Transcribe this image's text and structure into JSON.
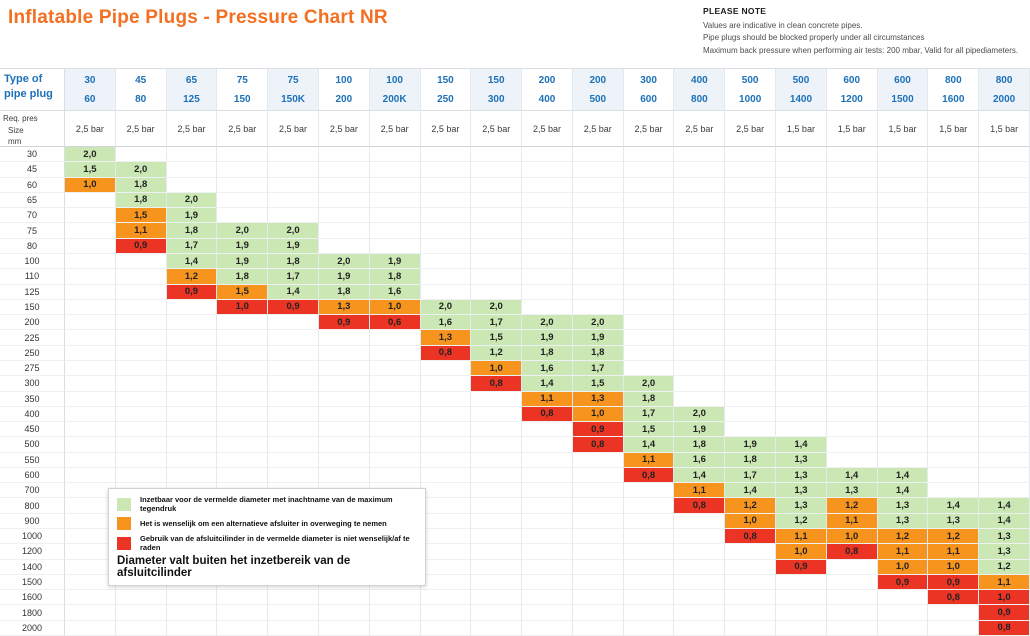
{
  "title": "Inflatable Pipe Plugs - Pressure Chart NR",
  "note": {
    "heading": "PLEASE NOTE",
    "lines": [
      "Values are indicative in clean concrete pipes.",
      "Pipe plugs should be blocked properly under all circumstances",
      "Maximum back pressure when performing air tests: 200 mbar, Valid for all pipediameters."
    ]
  },
  "colors": {
    "title_orange": "#F36F21",
    "header_blue": "#1D71B8",
    "green": "#CBE7B4",
    "orange": "#F7941E",
    "red": "#EC3424"
  },
  "legend": {
    "items": [
      {
        "swatch": "g",
        "label": "Inzetbaar voor de vermelde diameter met inachtname van de maximum tegendruk"
      },
      {
        "swatch": "o",
        "label": "Het is wenselijk om een alternatieve afsluiter in overweging te nemen"
      },
      {
        "swatch": "r",
        "label": "Gebruik van de afsluitcilinder in de vermelde diameter is niet wenselijk/af te raden"
      },
      {
        "swatch": "none",
        "label": "Diameter valt buiten het inzetbereik van de afsluitcilinder"
      }
    ]
  },
  "chart_data": {
    "type": "heatmap",
    "title": "Inflatable Pipe Plugs - Pressure Chart NR",
    "corner_label": "Type of pipe plug",
    "req_pres_label": "Req. pres",
    "size_label_lines": [
      "Size",
      "mm"
    ],
    "status_key": {
      "g": "usable",
      "o": "consider alternative",
      "r": "not advised"
    },
    "columns": [
      {
        "top": "30",
        "bottom": "60",
        "pressure": "2,5 bar"
      },
      {
        "top": "45",
        "bottom": "80",
        "pressure": "2,5 bar"
      },
      {
        "top": "65",
        "bottom": "125",
        "pressure": "2,5 bar"
      },
      {
        "top": "75",
        "bottom": "150",
        "pressure": "2,5 bar"
      },
      {
        "top": "75",
        "bottom": "150K",
        "pressure": "2,5 bar"
      },
      {
        "top": "100",
        "bottom": "200",
        "pressure": "2,5 bar"
      },
      {
        "top": "100",
        "bottom": "200K",
        "pressure": "2,5 bar"
      },
      {
        "top": "150",
        "bottom": "250",
        "pressure": "2,5 bar"
      },
      {
        "top": "150",
        "bottom": "300",
        "pressure": "2,5 bar"
      },
      {
        "top": "200",
        "bottom": "400",
        "pressure": "2,5 bar"
      },
      {
        "top": "200",
        "bottom": "500",
        "pressure": "2,5 bar"
      },
      {
        "top": "300",
        "bottom": "600",
        "pressure": "2,5 bar"
      },
      {
        "top": "400",
        "bottom": "800",
        "pressure": "2,5 bar"
      },
      {
        "top": "500",
        "bottom": "1000",
        "pressure": "2,5 bar"
      },
      {
        "top": "500",
        "bottom": "1400",
        "pressure": "1,5 bar"
      },
      {
        "top": "600",
        "bottom": "1200",
        "pressure": "1,5 bar"
      },
      {
        "top": "600",
        "bottom": "1500",
        "pressure": "1,5 bar"
      },
      {
        "top": "800",
        "bottom": "1600",
        "pressure": "1,5 bar"
      },
      {
        "top": "800",
        "bottom": "2000",
        "pressure": "1,5 bar"
      }
    ],
    "rows": [
      {
        "size": "30",
        "cells": [
          [
            0,
            "2,0",
            "g"
          ]
        ]
      },
      {
        "size": "45",
        "cells": [
          [
            0,
            "1,5",
            "g"
          ],
          [
            1,
            "2,0",
            "g"
          ]
        ]
      },
      {
        "size": "60",
        "cells": [
          [
            0,
            "1,0",
            "o"
          ],
          [
            1,
            "1,8",
            "g"
          ]
        ]
      },
      {
        "size": "65",
        "cells": [
          [
            1,
            "1,8",
            "g"
          ],
          [
            2,
            "2,0",
            "g"
          ]
        ]
      },
      {
        "size": "70",
        "cells": [
          [
            1,
            "1,5",
            "o"
          ],
          [
            2,
            "1,9",
            "g"
          ]
        ]
      },
      {
        "size": "75",
        "cells": [
          [
            1,
            "1,1",
            "o"
          ],
          [
            2,
            "1,8",
            "g"
          ],
          [
            3,
            "2,0",
            "g"
          ],
          [
            4,
            "2,0",
            "g"
          ]
        ]
      },
      {
        "size": "80",
        "cells": [
          [
            1,
            "0,9",
            "r"
          ],
          [
            2,
            "1,7",
            "g"
          ],
          [
            3,
            "1,9",
            "g"
          ],
          [
            4,
            "1,9",
            "g"
          ]
        ]
      },
      {
        "size": "100",
        "cells": [
          [
            2,
            "1,4",
            "g"
          ],
          [
            3,
            "1,9",
            "g"
          ],
          [
            4,
            "1,8",
            "g"
          ],
          [
            5,
            "2,0",
            "g"
          ],
          [
            6,
            "1,9",
            "g"
          ]
        ]
      },
      {
        "size": "110",
        "cells": [
          [
            2,
            "1,2",
            "o"
          ],
          [
            3,
            "1,8",
            "g"
          ],
          [
            4,
            "1,7",
            "g"
          ],
          [
            5,
            "1,9",
            "g"
          ],
          [
            6,
            "1,8",
            "g"
          ]
        ]
      },
      {
        "size": "125",
        "cells": [
          [
            2,
            "0,9",
            "r"
          ],
          [
            3,
            "1,5",
            "o"
          ],
          [
            4,
            "1,4",
            "g"
          ],
          [
            5,
            "1,8",
            "g"
          ],
          [
            6,
            "1,6",
            "g"
          ]
        ]
      },
      {
        "size": "150",
        "cells": [
          [
            3,
            "1,0",
            "r"
          ],
          [
            4,
            "0,9",
            "r"
          ],
          [
            5,
            "1,3",
            "o"
          ],
          [
            6,
            "1,0",
            "o"
          ],
          [
            7,
            "2,0",
            "g"
          ],
          [
            8,
            "2,0",
            "g"
          ]
        ]
      },
      {
        "size": "200",
        "cells": [
          [
            5,
            "0,9",
            "r"
          ],
          [
            6,
            "0,6",
            "r"
          ],
          [
            7,
            "1,6",
            "g"
          ],
          [
            8,
            "1,7",
            "g"
          ],
          [
            9,
            "2,0",
            "g"
          ],
          [
            10,
            "2,0",
            "g"
          ]
        ]
      },
      {
        "size": "225",
        "cells": [
          [
            7,
            "1,3",
            "o"
          ],
          [
            8,
            "1,5",
            "g"
          ],
          [
            9,
            "1,9",
            "g"
          ],
          [
            10,
            "1,9",
            "g"
          ]
        ]
      },
      {
        "size": "250",
        "cells": [
          [
            7,
            "0,8",
            "r"
          ],
          [
            8,
            "1,2",
            "g"
          ],
          [
            9,
            "1,8",
            "g"
          ],
          [
            10,
            "1,8",
            "g"
          ]
        ]
      },
      {
        "size": "275",
        "cells": [
          [
            8,
            "1,0",
            "o"
          ],
          [
            9,
            "1,6",
            "g"
          ],
          [
            10,
            "1,7",
            "g"
          ]
        ]
      },
      {
        "size": "300",
        "cells": [
          [
            8,
            "0,8",
            "r"
          ],
          [
            9,
            "1,4",
            "g"
          ],
          [
            10,
            "1,5",
            "g"
          ],
          [
            11,
            "2,0",
            "g"
          ]
        ]
      },
      {
        "size": "350",
        "cells": [
          [
            9,
            "1,1",
            "o"
          ],
          [
            10,
            "1,3",
            "o"
          ],
          [
            11,
            "1,8",
            "g"
          ]
        ]
      },
      {
        "size": "400",
        "cells": [
          [
            9,
            "0,8",
            "r"
          ],
          [
            10,
            "1,0",
            "o"
          ],
          [
            11,
            "1,7",
            "g"
          ],
          [
            12,
            "2,0",
            "g"
          ]
        ]
      },
      {
        "size": "450",
        "cells": [
          [
            10,
            "0,9",
            "r"
          ],
          [
            11,
            "1,5",
            "g"
          ],
          [
            12,
            "1,9",
            "g"
          ]
        ]
      },
      {
        "size": "500",
        "cells": [
          [
            10,
            "0,8",
            "r"
          ],
          [
            11,
            "1,4",
            "g"
          ],
          [
            12,
            "1,8",
            "g"
          ],
          [
            13,
            "1,9",
            "g"
          ],
          [
            14,
            "1,4",
            "g"
          ]
        ]
      },
      {
        "size": "550",
        "cells": [
          [
            11,
            "1,1",
            "o"
          ],
          [
            12,
            "1,6",
            "g"
          ],
          [
            13,
            "1,8",
            "g"
          ],
          [
            14,
            "1,3",
            "g"
          ]
        ]
      },
      {
        "size": "600",
        "cells": [
          [
            11,
            "0,8",
            "r"
          ],
          [
            12,
            "1,4",
            "g"
          ],
          [
            13,
            "1,7",
            "g"
          ],
          [
            14,
            "1,3",
            "g"
          ],
          [
            15,
            "1,4",
            "g"
          ],
          [
            16,
            "1,4",
            "g"
          ]
        ]
      },
      {
        "size": "700",
        "cells": [
          [
            12,
            "1,1",
            "o"
          ],
          [
            13,
            "1,4",
            "g"
          ],
          [
            14,
            "1,3",
            "g"
          ],
          [
            15,
            "1,3",
            "g"
          ],
          [
            16,
            "1,4",
            "g"
          ]
        ]
      },
      {
        "size": "800",
        "cells": [
          [
            12,
            "0,8",
            "r"
          ],
          [
            13,
            "1,2",
            "o"
          ],
          [
            14,
            "1,3",
            "g"
          ],
          [
            15,
            "1,2",
            "o"
          ],
          [
            16,
            "1,3",
            "g"
          ],
          [
            17,
            "1,4",
            "g"
          ],
          [
            18,
            "1,4",
            "g"
          ]
        ]
      },
      {
        "size": "900",
        "cells": [
          [
            13,
            "1,0",
            "o"
          ],
          [
            14,
            "1,2",
            "g"
          ],
          [
            15,
            "1,1",
            "o"
          ],
          [
            16,
            "1,3",
            "g"
          ],
          [
            17,
            "1,3",
            "g"
          ],
          [
            18,
            "1,4",
            "g"
          ]
        ]
      },
      {
        "size": "1000",
        "cells": [
          [
            13,
            "0,8",
            "r"
          ],
          [
            14,
            "1,1",
            "o"
          ],
          [
            15,
            "1,0",
            "o"
          ],
          [
            16,
            "1,2",
            "o"
          ],
          [
            17,
            "1,2",
            "o"
          ],
          [
            18,
            "1,3",
            "g"
          ]
        ]
      },
      {
        "size": "1200",
        "cells": [
          [
            14,
            "1,0",
            "o"
          ],
          [
            15,
            "0,8",
            "r"
          ],
          [
            16,
            "1,1",
            "o"
          ],
          [
            17,
            "1,1",
            "o"
          ],
          [
            18,
            "1,3",
            "g"
          ]
        ]
      },
      {
        "size": "1400",
        "cells": [
          [
            14,
            "0,9",
            "r"
          ],
          [
            16,
            "1,0",
            "o"
          ],
          [
            17,
            "1,0",
            "o"
          ],
          [
            18,
            "1,2",
            "g"
          ]
        ]
      },
      {
        "size": "1500",
        "cells": [
          [
            16,
            "0,9",
            "r"
          ],
          [
            17,
            "0,9",
            "r"
          ],
          [
            18,
            "1,1",
            "o"
          ]
        ]
      },
      {
        "size": "1600",
        "cells": [
          [
            17,
            "0,8",
            "r"
          ],
          [
            18,
            "1,0",
            "r"
          ]
        ]
      },
      {
        "size": "1800",
        "cells": [
          [
            18,
            "0,9",
            "r"
          ]
        ]
      },
      {
        "size": "2000",
        "cells": [
          [
            18,
            "0,8",
            "r"
          ]
        ]
      }
    ]
  }
}
